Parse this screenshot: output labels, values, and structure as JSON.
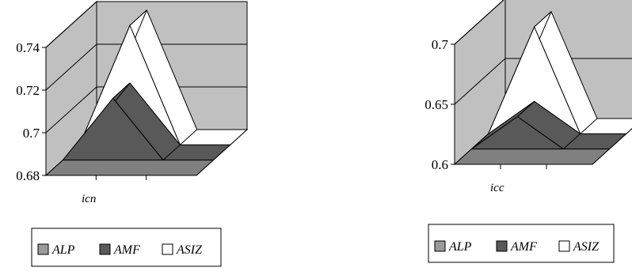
{
  "colors": {
    "wall": "#c0c0c0",
    "floor_alp": "#808080",
    "amf": "#595959",
    "asiz": "#ffffff",
    "alp": "#9a9a9a",
    "line": "#000000"
  },
  "chart_data": [
    {
      "type": "area",
      "three_d": true,
      "xlabel": "icn",
      "y_ticks": [
        "0.68",
        "0.7",
        "0.72",
        "0.74"
      ],
      "ylim": [
        0.68,
        0.74
      ],
      "grid": true,
      "legend_position": "bottom",
      "series": [
        {
          "name": "ALP",
          "values": [
            0.68,
            0.68,
            0.68,
            0.68
          ]
        },
        {
          "name": "AMF",
          "values": [
            0.68,
            0.709,
            0.68,
            0.68
          ]
        },
        {
          "name": "ASIZ",
          "values": [
            0.68,
            0.736,
            0.68,
            0.68
          ]
        }
      ],
      "legend": [
        "ALP",
        "AMF",
        "ASIZ"
      ]
    },
    {
      "type": "area",
      "three_d": true,
      "xlabel": "icc",
      "y_ticks": [
        "0.6",
        "0.65",
        "0.7"
      ],
      "ylim": [
        0.6,
        0.7
      ],
      "grid": true,
      "legend_position": "bottom",
      "series": [
        {
          "name": "ALP",
          "values": [
            0.6,
            0.6,
            0.6,
            0.6
          ]
        },
        {
          "name": "AMF",
          "values": [
            0.6,
            0.627,
            0.6,
            0.6
          ]
        },
        {
          "name": "ASIZ",
          "values": [
            0.6,
            0.689,
            0.6,
            0.6
          ]
        }
      ],
      "legend": [
        "ALP",
        "AMF",
        "ASIZ"
      ]
    }
  ]
}
